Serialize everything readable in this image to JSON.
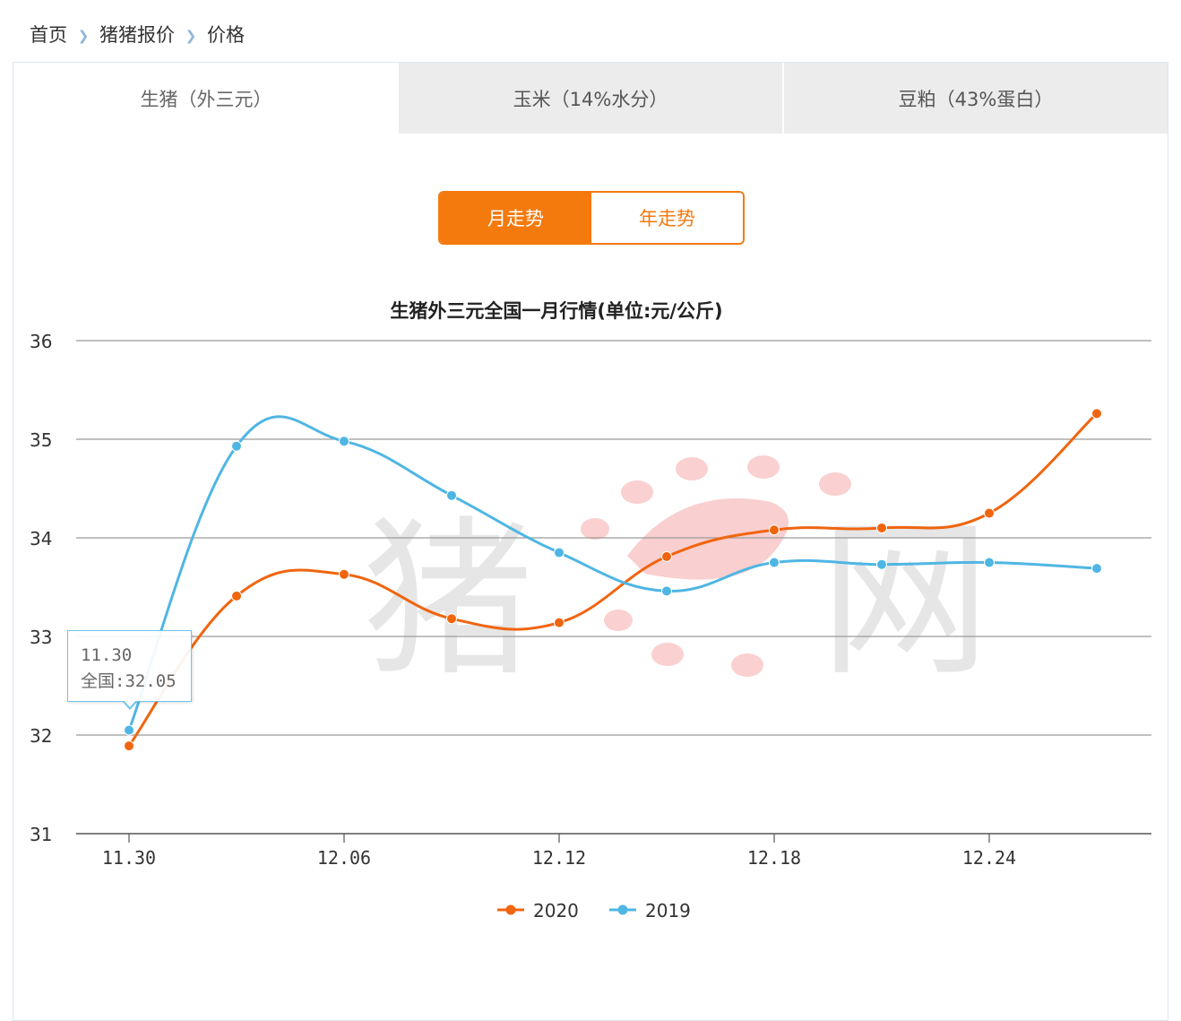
{
  "breadcrumb": {
    "items": [
      "首页",
      "猪猪报价",
      "价格"
    ]
  },
  "tabs": [
    {
      "label": "生猪（外三元）",
      "active": true
    },
    {
      "label": "玉米（14%水分）",
      "active": false
    },
    {
      "label": "豆粕（43%蛋白）",
      "active": false
    }
  ],
  "trend_toggle": {
    "month_label": "月走势",
    "year_label": "年走势",
    "active": "month"
  },
  "watermark": {
    "text_left": "猪",
    "text_right": "网"
  },
  "tooltip": {
    "date": "11.30",
    "text": "全国:32.05"
  },
  "colors": {
    "accent": "#f47a0e",
    "series_2020": "#f0650f",
    "series_2019": "#4fb6e3",
    "tab_inactive_bg": "#ececec"
  },
  "chart_data": {
    "type": "line",
    "title": "生猪外三元全国一月行情(单位:元/公斤)",
    "xlabel": "",
    "ylabel": "",
    "ylim": [
      31,
      36
    ],
    "yticks": [
      31,
      32,
      33,
      34,
      35,
      36
    ],
    "x": [
      "11.30",
      "12.03",
      "12.06",
      "12.09",
      "12.12",
      "12.15",
      "12.18",
      "12.21",
      "12.24",
      "12.27"
    ],
    "x_tick_labels": [
      "11.30",
      "12.06",
      "12.12",
      "12.18",
      "12.24"
    ],
    "grid": true,
    "legend_position": "bottom-center",
    "smooth": true,
    "series": [
      {
        "name": "2020",
        "color": "#f0650f",
        "values": [
          31.89,
          33.41,
          33.63,
          33.18,
          33.14,
          33.81,
          34.08,
          34.1,
          34.25,
          35.26
        ]
      },
      {
        "name": "2019",
        "color": "#4fb6e3",
        "values": [
          32.05,
          34.93,
          34.98,
          34.43,
          33.85,
          33.46,
          33.75,
          33.73,
          33.75,
          33.69
        ]
      }
    ]
  }
}
